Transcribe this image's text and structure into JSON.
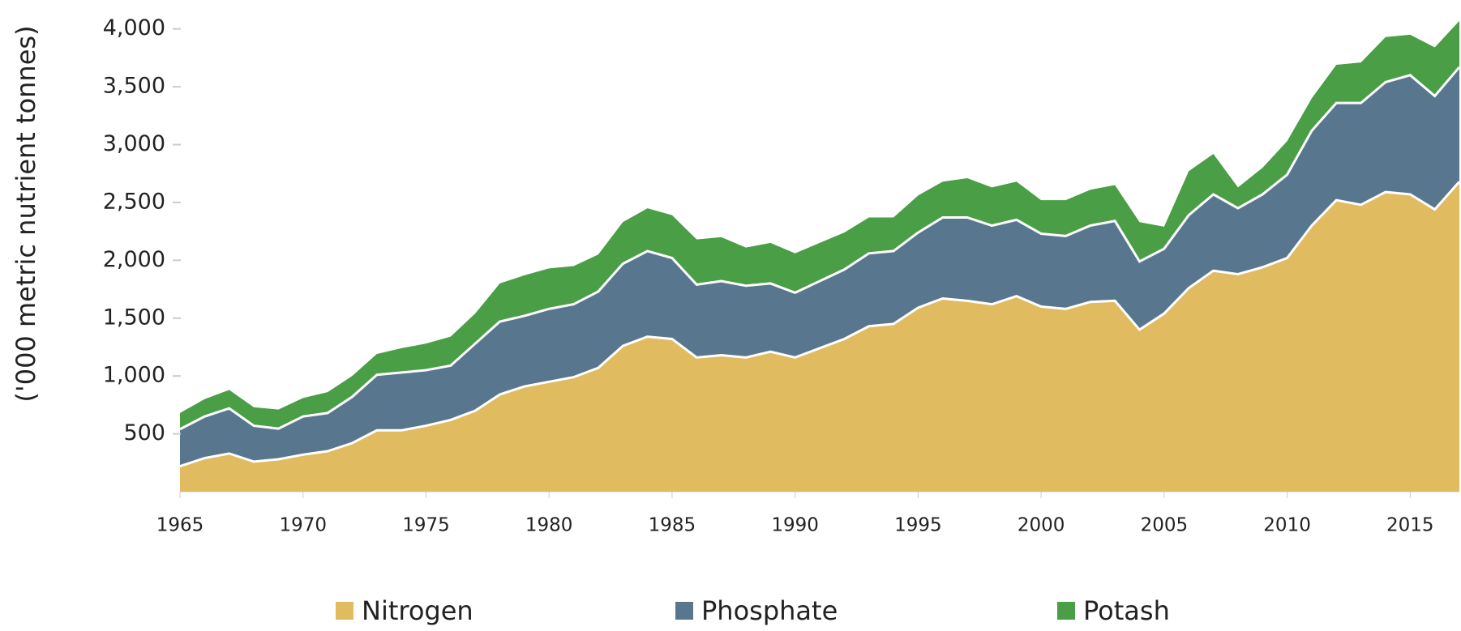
{
  "chart_data": {
    "type": "stacked_area",
    "y_label": "('000 metric nutrient tonnes)",
    "x": [
      1965,
      1966,
      1967,
      1968,
      1969,
      1970,
      1971,
      1972,
      1973,
      1974,
      1975,
      1976,
      1977,
      1978,
      1979,
      1980,
      1981,
      1982,
      1983,
      1984,
      1985,
      1986,
      1987,
      1988,
      1989,
      1990,
      1991,
      1992,
      1993,
      1994,
      1995,
      1996,
      1997,
      1998,
      1999,
      2000,
      2001,
      2002,
      2003,
      2004,
      2005,
      2006,
      2007,
      2008,
      2009,
      2010,
      2011,
      2012,
      2013,
      2014,
      2015,
      2016,
      2017
    ],
    "series": [
      {
        "name": "Nitrogen",
        "color": "#e0bb5f",
        "values": [
          220,
          290,
          330,
          260,
          280,
          320,
          350,
          420,
          530,
          530,
          570,
          620,
          700,
          840,
          910,
          950,
          990,
          1070,
          1260,
          1340,
          1320,
          1160,
          1180,
          1160,
          1210,
          1160,
          1240,
          1320,
          1430,
          1450,
          1590,
          1670,
          1650,
          1620,
          1690,
          1600,
          1580,
          1640,
          1650,
          1400,
          1540,
          1760,
          1910,
          1880,
          1940,
          2020,
          2300,
          2520,
          2480,
          2590,
          2570,
          2440,
          2680
        ]
      },
      {
        "name": "Phosphate",
        "color": "#58778f",
        "values": [
          320,
          360,
          390,
          310,
          265,
          330,
          330,
          400,
          480,
          500,
          480,
          470,
          580,
          630,
          610,
          630,
          630,
          660,
          710,
          740,
          700,
          630,
          640,
          620,
          590,
          560,
          580,
          600,
          630,
          630,
          650,
          700,
          720,
          680,
          660,
          630,
          630,
          660,
          690,
          590,
          560,
          630,
          660,
          570,
          630,
          720,
          820,
          840,
          880,
          950,
          1030,
          980,
          990
        ]
      },
      {
        "name": "Potash",
        "color": "#4a9e45",
        "values": [
          140,
          150,
          160,
          160,
          165,
          160,
          180,
          180,
          180,
          210,
          230,
          250,
          260,
          330,
          350,
          350,
          330,
          320,
          360,
          370,
          370,
          390,
          380,
          330,
          350,
          340,
          330,
          320,
          310,
          290,
          320,
          310,
          340,
          330,
          330,
          290,
          310,
          310,
          310,
          340,
          190,
          380,
          350,
          180,
          230,
          290,
          280,
          330,
          350,
          390,
          350,
          420,
          400
        ]
      }
    ],
    "xlim": [
      1965,
      2017
    ],
    "xticks": [
      1965,
      1970,
      1975,
      1980,
      1985,
      1990,
      1995,
      2000,
      2005,
      2010,
      2015
    ],
    "ylim": [
      0,
      4250
    ],
    "yticks": [
      500,
      {
        "value": 1000,
        "label": "1,000"
      },
      {
        "value": 1500,
        "label": "1,500"
      },
      {
        "value": 2000,
        "label": "2,000"
      },
      {
        "value": 2500,
        "label": "2,500"
      },
      {
        "value": 3000,
        "label": "3,000"
      },
      {
        "value": 3500,
        "label": "3,500"
      },
      {
        "value": 4000,
        "label": "4,000"
      }
    ]
  }
}
